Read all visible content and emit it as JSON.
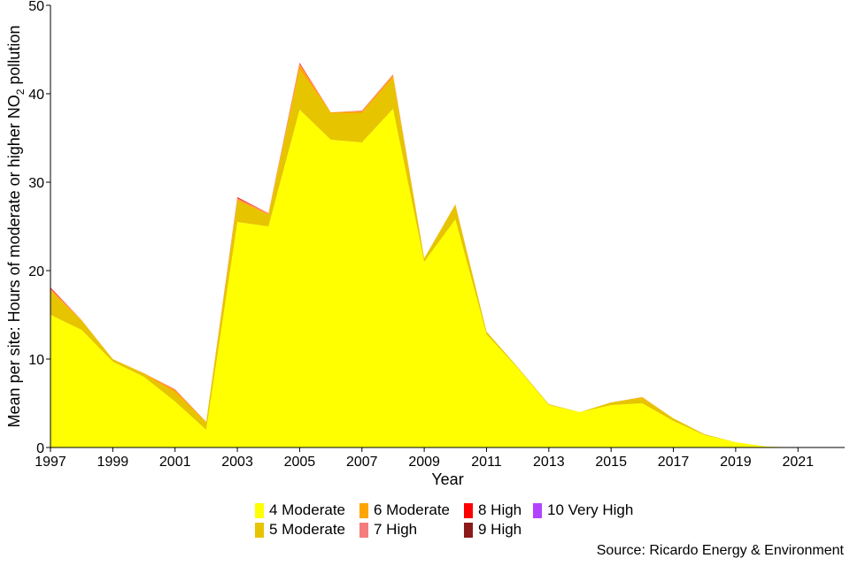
{
  "chart_data": {
    "type": "area",
    "stacked": true,
    "x": [
      1997,
      1998,
      1999,
      2000,
      2001,
      2002,
      2003,
      2004,
      2005,
      2006,
      2007,
      2008,
      2009,
      2010,
      2011,
      2012,
      2013,
      2014,
      2015,
      2016,
      2017,
      2018,
      2019,
      2020,
      2021
    ],
    "series": [
      {
        "name": "4 Moderate",
        "color": "#FFFF00",
        "values": [
          15.0,
          13.3,
          9.7,
          8.0,
          5.2,
          2.0,
          25.5,
          25.0,
          38.2,
          34.8,
          34.5,
          38.3,
          21.0,
          25.8,
          12.8,
          9.0,
          4.8,
          4.0,
          4.8,
          5.0,
          3.0,
          1.4,
          0.6,
          0.1,
          0.0
        ]
      },
      {
        "name": "5 Moderate",
        "color": "#E6C400",
        "values": [
          2.7,
          1.0,
          0.3,
          0.3,
          1.0,
          0.8,
          2.4,
          1.3,
          4.5,
          3.0,
          3.3,
          3.5,
          0.4,
          1.6,
          0.3,
          0.1,
          0.1,
          0.0,
          0.3,
          0.6,
          0.3,
          0.1,
          0.0,
          0.0,
          0.0
        ]
      },
      {
        "name": "6 Moderate",
        "color": "#FFA500",
        "values": [
          0.2,
          0.1,
          0.0,
          0.1,
          0.3,
          0.1,
          0.2,
          0.1,
          0.6,
          0.1,
          0.2,
          0.3,
          0.0,
          0.1,
          0.0,
          0.0,
          0.0,
          0.0,
          0.0,
          0.1,
          0.0,
          0.0,
          0.0,
          0.0,
          0.0
        ]
      },
      {
        "name": "7 High",
        "color": "#F47C7C",
        "values": [
          0.1,
          0.0,
          0.0,
          0.0,
          0.1,
          0.0,
          0.1,
          0.1,
          0.1,
          0.0,
          0.1,
          0.1,
          0.0,
          0.0,
          0.0,
          0.0,
          0.0,
          0.0,
          0.0,
          0.0,
          0.0,
          0.0,
          0.0,
          0.0,
          0.0
        ]
      },
      {
        "name": "8 High",
        "color": "#FF0000",
        "values": [
          0.1,
          0.0,
          0.0,
          0.0,
          0.0,
          0.0,
          0.1,
          0.0,
          0.1,
          0.0,
          0.0,
          0.0,
          0.0,
          0.0,
          0.0,
          0.0,
          0.0,
          0.0,
          0.0,
          0.0,
          0.0,
          0.0,
          0.0,
          0.0,
          0.0
        ]
      },
      {
        "name": "9 High",
        "color": "#8B1A1A",
        "values": [
          0.0,
          0.0,
          0.0,
          0.0,
          0.0,
          0.0,
          0.0,
          0.0,
          0.0,
          0.0,
          0.0,
          0.0,
          0.0,
          0.0,
          0.0,
          0.0,
          0.0,
          0.0,
          0.0,
          0.0,
          0.0,
          0.0,
          0.0,
          0.0,
          0.0
        ]
      },
      {
        "name": "10 Very High",
        "color": "#B342FF",
        "values": [
          0.0,
          0.0,
          0.0,
          0.0,
          0.0,
          0.0,
          0.0,
          0.0,
          0.0,
          0.0,
          0.0,
          0.0,
          0.0,
          0.0,
          0.0,
          0.0,
          0.0,
          0.0,
          0.0,
          0.0,
          0.0,
          0.0,
          0.0,
          0.0,
          0.0
        ]
      }
    ],
    "xlabel": "Year",
    "ylabel_prefix": "Mean per site: Hours of moderate or higher NO",
    "ylabel_sub": "2",
    "ylabel_suffix": " pollution",
    "xlim": [
      1997,
      2022.5
    ],
    "ylim": [
      0,
      50
    ],
    "xticks": [
      1997,
      1999,
      2001,
      2003,
      2005,
      2007,
      2009,
      2011,
      2013,
      2015,
      2017,
      2019,
      2021
    ],
    "yticks": [
      0,
      10,
      20,
      30,
      40,
      50
    ],
    "grid": false,
    "legend_position": "bottom",
    "source": "Source: Ricardo Energy & Environment"
  }
}
